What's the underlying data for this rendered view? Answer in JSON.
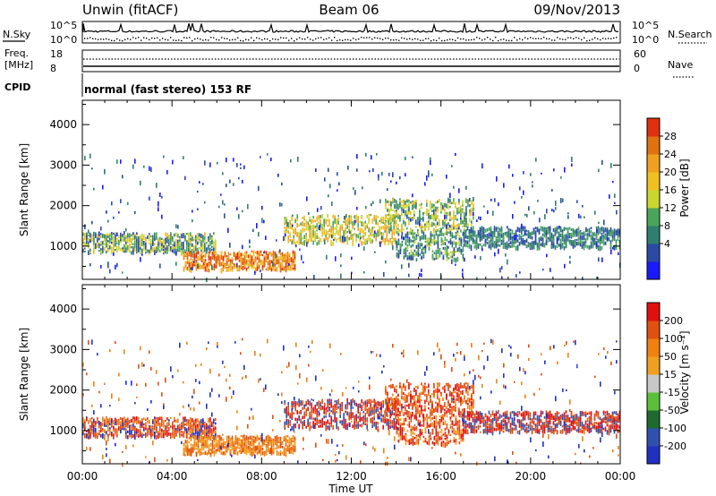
{
  "header": {
    "radar": "Unwin (fitACF)",
    "beam": "Beam 06",
    "date": "09/Nov/2013"
  },
  "noise_panel": {
    "left_label": "N.Sky",
    "right_label": "N.Search",
    "left_ticks": [
      "10^5",
      "10^0"
    ],
    "right_ticks": [
      "10^5",
      "10^0"
    ]
  },
  "freq_panel": {
    "left_label_1": "Freq.",
    "left_label_2": "[MHz]",
    "right_label": "Nave",
    "left_ticks": [
      "18",
      "8"
    ],
    "right_ticks": [
      "60",
      "0"
    ]
  },
  "cpid_panel": {
    "label": "CPID",
    "text": "normal (fast stereo) 153 RF"
  },
  "time_axis": {
    "label": "Time UT",
    "ticks": [
      "00:00",
      "04:00",
      "08:00",
      "12:00",
      "16:00",
      "20:00",
      "00:00"
    ]
  },
  "chart_data": [
    {
      "type": "heatmap",
      "name": "power",
      "ylabel": "Slant Range [km]",
      "yticks": [
        "1000",
        "2000",
        "3000",
        "4000"
      ],
      "ylim": [
        180,
        4600
      ],
      "xlim_hours": [
        0,
        24
      ],
      "colorbar_label": "Power [dB]",
      "colorbar_ticks": [
        "4",
        "8",
        "12",
        "16",
        "20",
        "24",
        "28"
      ],
      "colorbar_colors": [
        "#1a1aff",
        "#2b4aa6",
        "#2e7f6e",
        "#4aa55a",
        "#c9d62e",
        "#f0c020",
        "#f0a020",
        "#e07010",
        "#e03010"
      ],
      "echo_bands": [
        {
          "t0": 0.0,
          "t1": 6.0,
          "r0": 880,
          "r1": 1350,
          "colors": [
            "#4aa55a",
            "#c9d62e",
            "#2e7f6e",
            "#f0c020",
            "#2b4aa6"
          ]
        },
        {
          "t0": 4.5,
          "t1": 9.5,
          "r0": 450,
          "r1": 900,
          "colors": [
            "#f0a020",
            "#e07010",
            "#e03010",
            "#f0c020"
          ]
        },
        {
          "t0": 9.0,
          "t1": 14.0,
          "r0": 1100,
          "r1": 1800,
          "colors": [
            "#c9d62e",
            "#f0c020",
            "#f0a020",
            "#4aa55a"
          ]
        },
        {
          "t0": 13.5,
          "t1": 17.5,
          "r0": 1400,
          "r1": 2200,
          "colors": [
            "#4aa55a",
            "#c9d62e",
            "#2e7f6e",
            "#f0c020"
          ]
        },
        {
          "t0": 14.0,
          "t1": 17.0,
          "r0": 700,
          "r1": 1400,
          "colors": [
            "#2b4aa6",
            "#2e7f6e",
            "#c9d62e",
            "#4aa55a"
          ]
        },
        {
          "t0": 17.0,
          "t1": 24.0,
          "r0": 1000,
          "r1": 1500,
          "colors": [
            "#2b4aa6",
            "#2e7f6e",
            "#4aa55a"
          ]
        },
        {
          "t0": 0.0,
          "t1": 24.0,
          "r0": 200,
          "r1": 3300,
          "colors": [
            "#2b4aa6",
            "#1a1aff",
            "#2e7f6e"
          ]
        }
      ]
    },
    {
      "type": "heatmap",
      "name": "velocity",
      "ylabel": "Slant Range [km]",
      "yticks": [
        "1000",
        "2000",
        "3000",
        "4000"
      ],
      "ylim": [
        180,
        4600
      ],
      "xlim_hours": [
        0,
        24
      ],
      "colorbar_label": "Velocity [m s⁻¹]",
      "colorbar_ticks": [
        "200",
        "100",
        "50",
        "15",
        "-15",
        "-50",
        "-100",
        "-200"
      ],
      "colorbar_colors": [
        "#2030c0",
        "#3050b0",
        "#1d6b2e",
        "#5cbf3c",
        "#c8c8c8",
        "#f0a020",
        "#f08010",
        "#e05010",
        "#e01010"
      ],
      "echo_bands": [
        {
          "t0": 0.0,
          "t1": 6.0,
          "r0": 880,
          "r1": 1350,
          "colors": [
            "#e01010",
            "#e05010",
            "#f08010",
            "#2030c0"
          ]
        },
        {
          "t0": 4.5,
          "t1": 9.5,
          "r0": 450,
          "r1": 900,
          "colors": [
            "#f08010",
            "#f0a020",
            "#e05010"
          ]
        },
        {
          "t0": 9.0,
          "t1": 14.0,
          "r0": 1100,
          "r1": 1800,
          "colors": [
            "#e01010",
            "#e05010",
            "#3050b0"
          ]
        },
        {
          "t0": 13.5,
          "t1": 17.5,
          "r0": 1400,
          "r1": 2200,
          "colors": [
            "#e01010",
            "#e05010",
            "#f08010"
          ]
        },
        {
          "t0": 14.0,
          "t1": 17.0,
          "r0": 700,
          "r1": 1400,
          "colors": [
            "#e05010",
            "#f0a020",
            "#e01010"
          ]
        },
        {
          "t0": 17.0,
          "t1": 24.0,
          "r0": 1000,
          "r1": 1500,
          "colors": [
            "#e01010",
            "#e05010",
            "#3050b0"
          ]
        },
        {
          "t0": 0.0,
          "t1": 24.0,
          "r0": 200,
          "r1": 3300,
          "colors": [
            "#e05010",
            "#2030c0",
            "#f08010"
          ]
        }
      ]
    }
  ]
}
